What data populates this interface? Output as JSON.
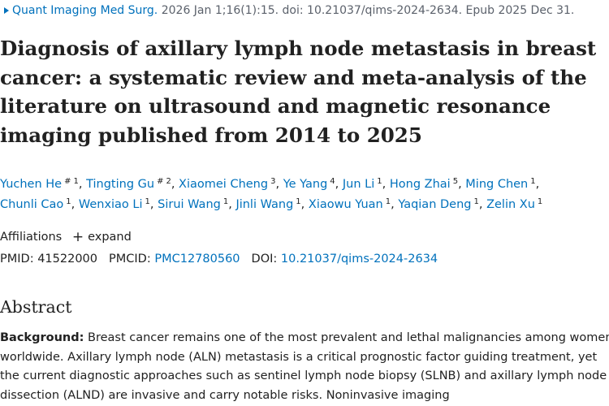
{
  "citation": {
    "journal": "Quant Imaging Med Surg.",
    "details": "2026 Jan 1;16(1):15. doi: 10.21037/qims-2024-2634. Epub 2025 Dec 31."
  },
  "title": "Diagnosis of axillary lymph node metastasis in breast cancer: a systematic review and meta-analysis of the literature on ultrasound and magnetic resonance imaging published from 2014 to 2025",
  "authors": [
    {
      "name": "Yuchen He",
      "equal": "#",
      "affil": "1"
    },
    {
      "name": "Tingting Gu",
      "equal": "#",
      "affil": "2"
    },
    {
      "name": "Xiaomei Cheng",
      "affil": "3"
    },
    {
      "name": "Ye Yang",
      "affil": "4"
    },
    {
      "name": "Jun Li",
      "affil": "1"
    },
    {
      "name": "Hong Zhai",
      "affil": "5"
    },
    {
      "name": "Ming Chen",
      "affil": "1"
    },
    {
      "name": "Chunli Cao",
      "affil": "1"
    },
    {
      "name": "Wenxiao Li",
      "affil": "1"
    },
    {
      "name": "Sirui Wang",
      "affil": "1"
    },
    {
      "name": "Jinli Wang",
      "affil": "1"
    },
    {
      "name": "Xiaowu Yuan",
      "affil": "1"
    },
    {
      "name": "Yaqian Deng",
      "affil": "1"
    },
    {
      "name": "Zelin Xu",
      "affil": "1"
    }
  ],
  "affiliations": {
    "label": "Affiliations",
    "expand_label": "expand",
    "plus_icon": "+"
  },
  "identifiers": {
    "pmid_label": "PMID:",
    "pmid": "41522000",
    "pmcid_label": "PMCID:",
    "pmcid": "PMC12780560",
    "doi_label": "DOI:",
    "doi": "10.21037/qims-2024-2634"
  },
  "abstract": {
    "heading": "Abstract",
    "background_label": "Background:",
    "background_text": "Breast cancer remains one of the most prevalent and lethal malignancies among women worldwide. Axillary lymph node (ALN) metastasis is a critical prognostic factor guiding treatment, yet the current diagnostic approaches such as sentinel lymph node biopsy (SLNB) and axillary lymph node dissection (ALND) are invasive and carry notable risks. Noninvasive imaging"
  },
  "colors": {
    "link": "#0071bc",
    "text": "#212121",
    "muted": "#5b616b"
  }
}
